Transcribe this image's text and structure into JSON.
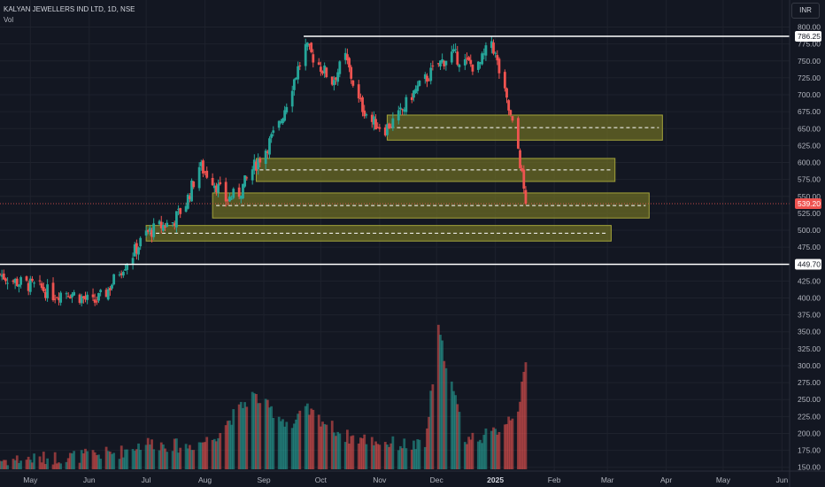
{
  "header": {
    "symbol_line": "KALYAN JEWELLERS IND LTD, 1D, NSE",
    "volume_label": "Vol",
    "currency": "INR"
  },
  "colors": {
    "background": "#131722",
    "grid": "#1e222d",
    "up": "#26a69a",
    "down": "#ef5350",
    "zone_fill": "#6b6b24",
    "zone_border": "#a3a33a",
    "level_line": "#ffffff",
    "axis_text": "#b2b5be"
  },
  "chart_data": {
    "type": "candlestick",
    "title": "KALYAN JEWELLERS IND LTD, 1D, NSE",
    "x_axis": {
      "tick_labels": [
        "May",
        "Jun",
        "Jul",
        "Aug",
        "Sep",
        "Oct",
        "Nov",
        "Dec",
        "2025",
        "Feb",
        "Mar",
        "Apr",
        "May",
        "Jun"
      ],
      "range": [
        "2024-04-15",
        "2025-06-05"
      ]
    },
    "y_axis": {
      "ticks": [
        150,
        175,
        200,
        225,
        250,
        275,
        300,
        325,
        350,
        375,
        400,
        425,
        450,
        475,
        500,
        525,
        550,
        575,
        600,
        625,
        650,
        675,
        700,
        725,
        750,
        775,
        800
      ],
      "range": [
        147,
        802
      ],
      "unit": "INR"
    },
    "price_labels": [
      {
        "label": "786.25",
        "value": 786.25,
        "kind": "level"
      },
      {
        "label": "539.20",
        "value": 539.2,
        "kind": "last"
      },
      {
        "label": "449.70",
        "value": 449.7,
        "kind": "level"
      }
    ],
    "horizontal_lines": [
      {
        "value": 786.25,
        "from": "2024-09-22"
      },
      {
        "value": 449.7,
        "from": "2024-04-15"
      }
    ],
    "zones": [
      {
        "from": "2024-11-05",
        "to": "2025-03-30",
        "low": 633,
        "high": 670
      },
      {
        "from": "2024-08-28",
        "to": "2025-03-05",
        "low": 572,
        "high": 606
      },
      {
        "from": "2024-08-05",
        "to": "2025-03-23",
        "low": 518,
        "high": 555
      },
      {
        "from": "2024-07-01",
        "to": "2025-03-03",
        "low": 484,
        "high": 507
      }
    ],
    "close_series": [
      [
        "2024-04-15",
        435
      ],
      [
        "2024-04-22",
        425
      ],
      [
        "2024-04-29",
        420
      ],
      [
        "2024-05-06",
        415
      ],
      [
        "2024-05-13",
        405
      ],
      [
        "2024-05-20",
        410
      ],
      [
        "2024-05-27",
        402
      ],
      [
        "2024-06-03",
        392
      ],
      [
        "2024-06-10",
        408
      ],
      [
        "2024-06-17",
        440
      ],
      [
        "2024-06-24",
        465
      ],
      [
        "2024-07-01",
        495
      ],
      [
        "2024-07-08",
        505
      ],
      [
        "2024-07-15",
        512
      ],
      [
        "2024-07-22",
        540
      ],
      [
        "2024-07-29",
        595
      ],
      [
        "2024-08-05",
        575
      ],
      [
        "2024-08-12",
        545
      ],
      [
        "2024-08-19",
        555
      ],
      [
        "2024-08-26",
        590
      ],
      [
        "2024-09-02",
        620
      ],
      [
        "2024-09-09",
        655
      ],
      [
        "2024-09-16",
        715
      ],
      [
        "2024-09-23",
        770
      ],
      [
        "2024-09-30",
        745
      ],
      [
        "2024-10-07",
        720
      ],
      [
        "2024-10-14",
        755
      ],
      [
        "2024-10-21",
        690
      ],
      [
        "2024-10-28",
        660
      ],
      [
        "2024-11-04",
        650
      ],
      [
        "2024-11-11",
        668
      ],
      [
        "2024-11-18",
        700
      ],
      [
        "2024-11-25",
        722
      ],
      [
        "2024-12-02",
        745
      ],
      [
        "2024-12-09",
        760
      ],
      [
        "2024-12-16",
        748
      ],
      [
        "2024-12-23",
        740
      ],
      [
        "2024-12-30",
        780
      ],
      [
        "2025-01-06",
        700
      ],
      [
        "2025-01-13",
        620
      ],
      [
        "2025-01-17",
        539.2
      ]
    ],
    "volume_series": [
      [
        "2024-04-15",
        158
      ],
      [
        "2024-05-06",
        160
      ],
      [
        "2024-05-27",
        163
      ],
      [
        "2024-06-17",
        168
      ],
      [
        "2024-07-01",
        180
      ],
      [
        "2024-07-22",
        175
      ],
      [
        "2024-08-05",
        185
      ],
      [
        "2024-08-26",
        240
      ],
      [
        "2024-09-16",
        200
      ],
      [
        "2024-09-23",
        222
      ],
      [
        "2024-10-14",
        188
      ],
      [
        "2024-11-04",
        180
      ],
      [
        "2024-11-25",
        175
      ],
      [
        "2024-12-02",
        320
      ],
      [
        "2024-12-16",
        185
      ],
      [
        "2024-12-30",
        190
      ],
      [
        "2025-01-06",
        205
      ],
      [
        "2025-01-13",
        225
      ],
      [
        "2025-01-17",
        272
      ]
    ]
  }
}
